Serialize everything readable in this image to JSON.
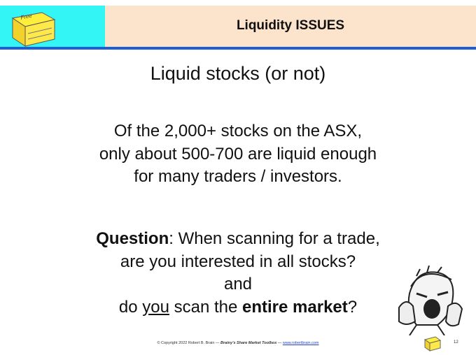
{
  "header": {
    "title": "Liquidity ISSUES",
    "icon_label": "Free"
  },
  "slide": {
    "heading": "Liquid stocks (or not)",
    "paragraph": [
      "Of the 2,000+ stocks on the ASX,",
      "only about 500-700 are liquid enough",
      "for many traders / investors."
    ],
    "question": [
      [
        {
          "text": "Question",
          "bold": true
        },
        {
          "text": ": When scanning for a trade,"
        }
      ],
      [
        {
          "text": "are you interested in all stocks?"
        }
      ],
      [
        {
          "text": "and"
        }
      ],
      [
        {
          "text": "do "
        },
        {
          "text": "you",
          "underline": true
        },
        {
          "text": " scan the "
        },
        {
          "text": "entire market",
          "bold": true
        },
        {
          "text": "?"
        }
      ]
    ]
  },
  "footer": {
    "copyright": "© Copyright 2022 Robert B. Brain — ",
    "toolbox": "Brainy's Share Market Toolbox",
    "separator": " — ",
    "url": "www.robertbrain.com",
    "page": "12"
  }
}
